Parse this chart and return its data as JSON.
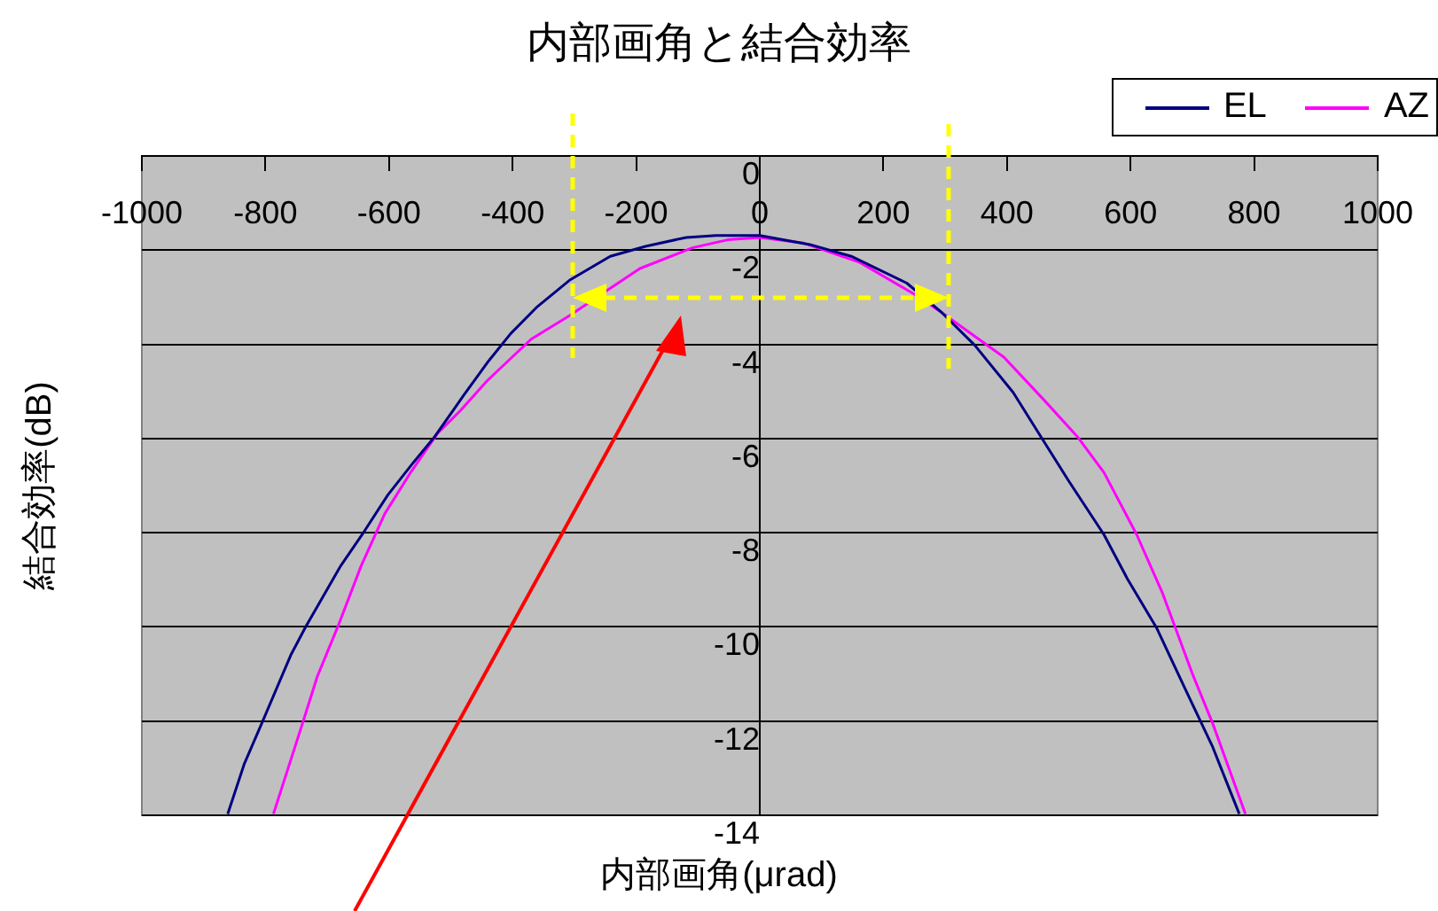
{
  "chart_data": {
    "type": "line",
    "title": "内部画角と結合効率",
    "xlabel": "内部画角(μrad)",
    "ylabel": "結合効率(dB)",
    "xlim": [
      -1000,
      1000
    ],
    "xticks": [
      -1000,
      -800,
      -600,
      -400,
      -200,
      0,
      200,
      400,
      600,
      800,
      1000
    ],
    "ylim": [
      -14,
      0
    ],
    "yticks": [
      -14,
      -12,
      -10,
      -8,
      -6,
      -4,
      -2,
      0
    ],
    "grid": "y",
    "legend": "top right",
    "marker": "none",
    "line_style": "solid",
    "series": [
      {
        "name": "EL",
        "color": "#000080",
        "x": [
          -861,
          -834,
          -806,
          -759,
          -735,
          -678,
          -640,
          -602,
          -560,
          -526,
          -479,
          -441,
          -403,
          -360,
          -308,
          -242,
          -185,
          -119,
          -71,
          0,
          81,
          148,
          238,
          295,
          348,
          410,
          452,
          500,
          557,
          595,
          643,
          690,
          733,
          752,
          776
        ],
        "values": [
          -13.97,
          -12.9,
          -12.05,
          -10.6,
          -10.0,
          -8.7,
          -7.97,
          -7.2,
          -6.5,
          -5.96,
          -5.08,
          -4.39,
          -3.77,
          -3.2,
          -2.64,
          -2.13,
          -1.92,
          -1.73,
          -1.69,
          -1.69,
          -1.88,
          -2.13,
          -2.7,
          -3.33,
          -4.02,
          -5.02,
          -5.9,
          -6.9,
          -8.04,
          -8.98,
          -10.04,
          -11.36,
          -12.55,
          -13.18,
          -13.97
        ]
      },
      {
        "name": "AZ",
        "color": "#ff00ff",
        "x": [
          -787,
          -740,
          -716,
          -683,
          -645,
          -607,
          -564,
          -522,
          -484,
          -441,
          -370,
          -308,
          -251,
          -194,
          -109,
          -52,
          0,
          71,
          162,
          252,
          295,
          395,
          462,
          514,
          557,
          610,
          652,
          700,
          733,
          786
        ],
        "values": [
          -13.97,
          -12.05,
          -11.05,
          -10.0,
          -8.7,
          -7.6,
          -6.7,
          -5.9,
          -5.4,
          -4.77,
          -3.89,
          -3.39,
          -2.89,
          -2.39,
          -1.95,
          -1.78,
          -1.73,
          -1.85,
          -2.26,
          -2.95,
          -3.33,
          -4.27,
          -5.21,
          -5.96,
          -6.72,
          -8.04,
          -9.29,
          -10.99,
          -12.05,
          -13.97
        ]
      }
    ]
  }
}
